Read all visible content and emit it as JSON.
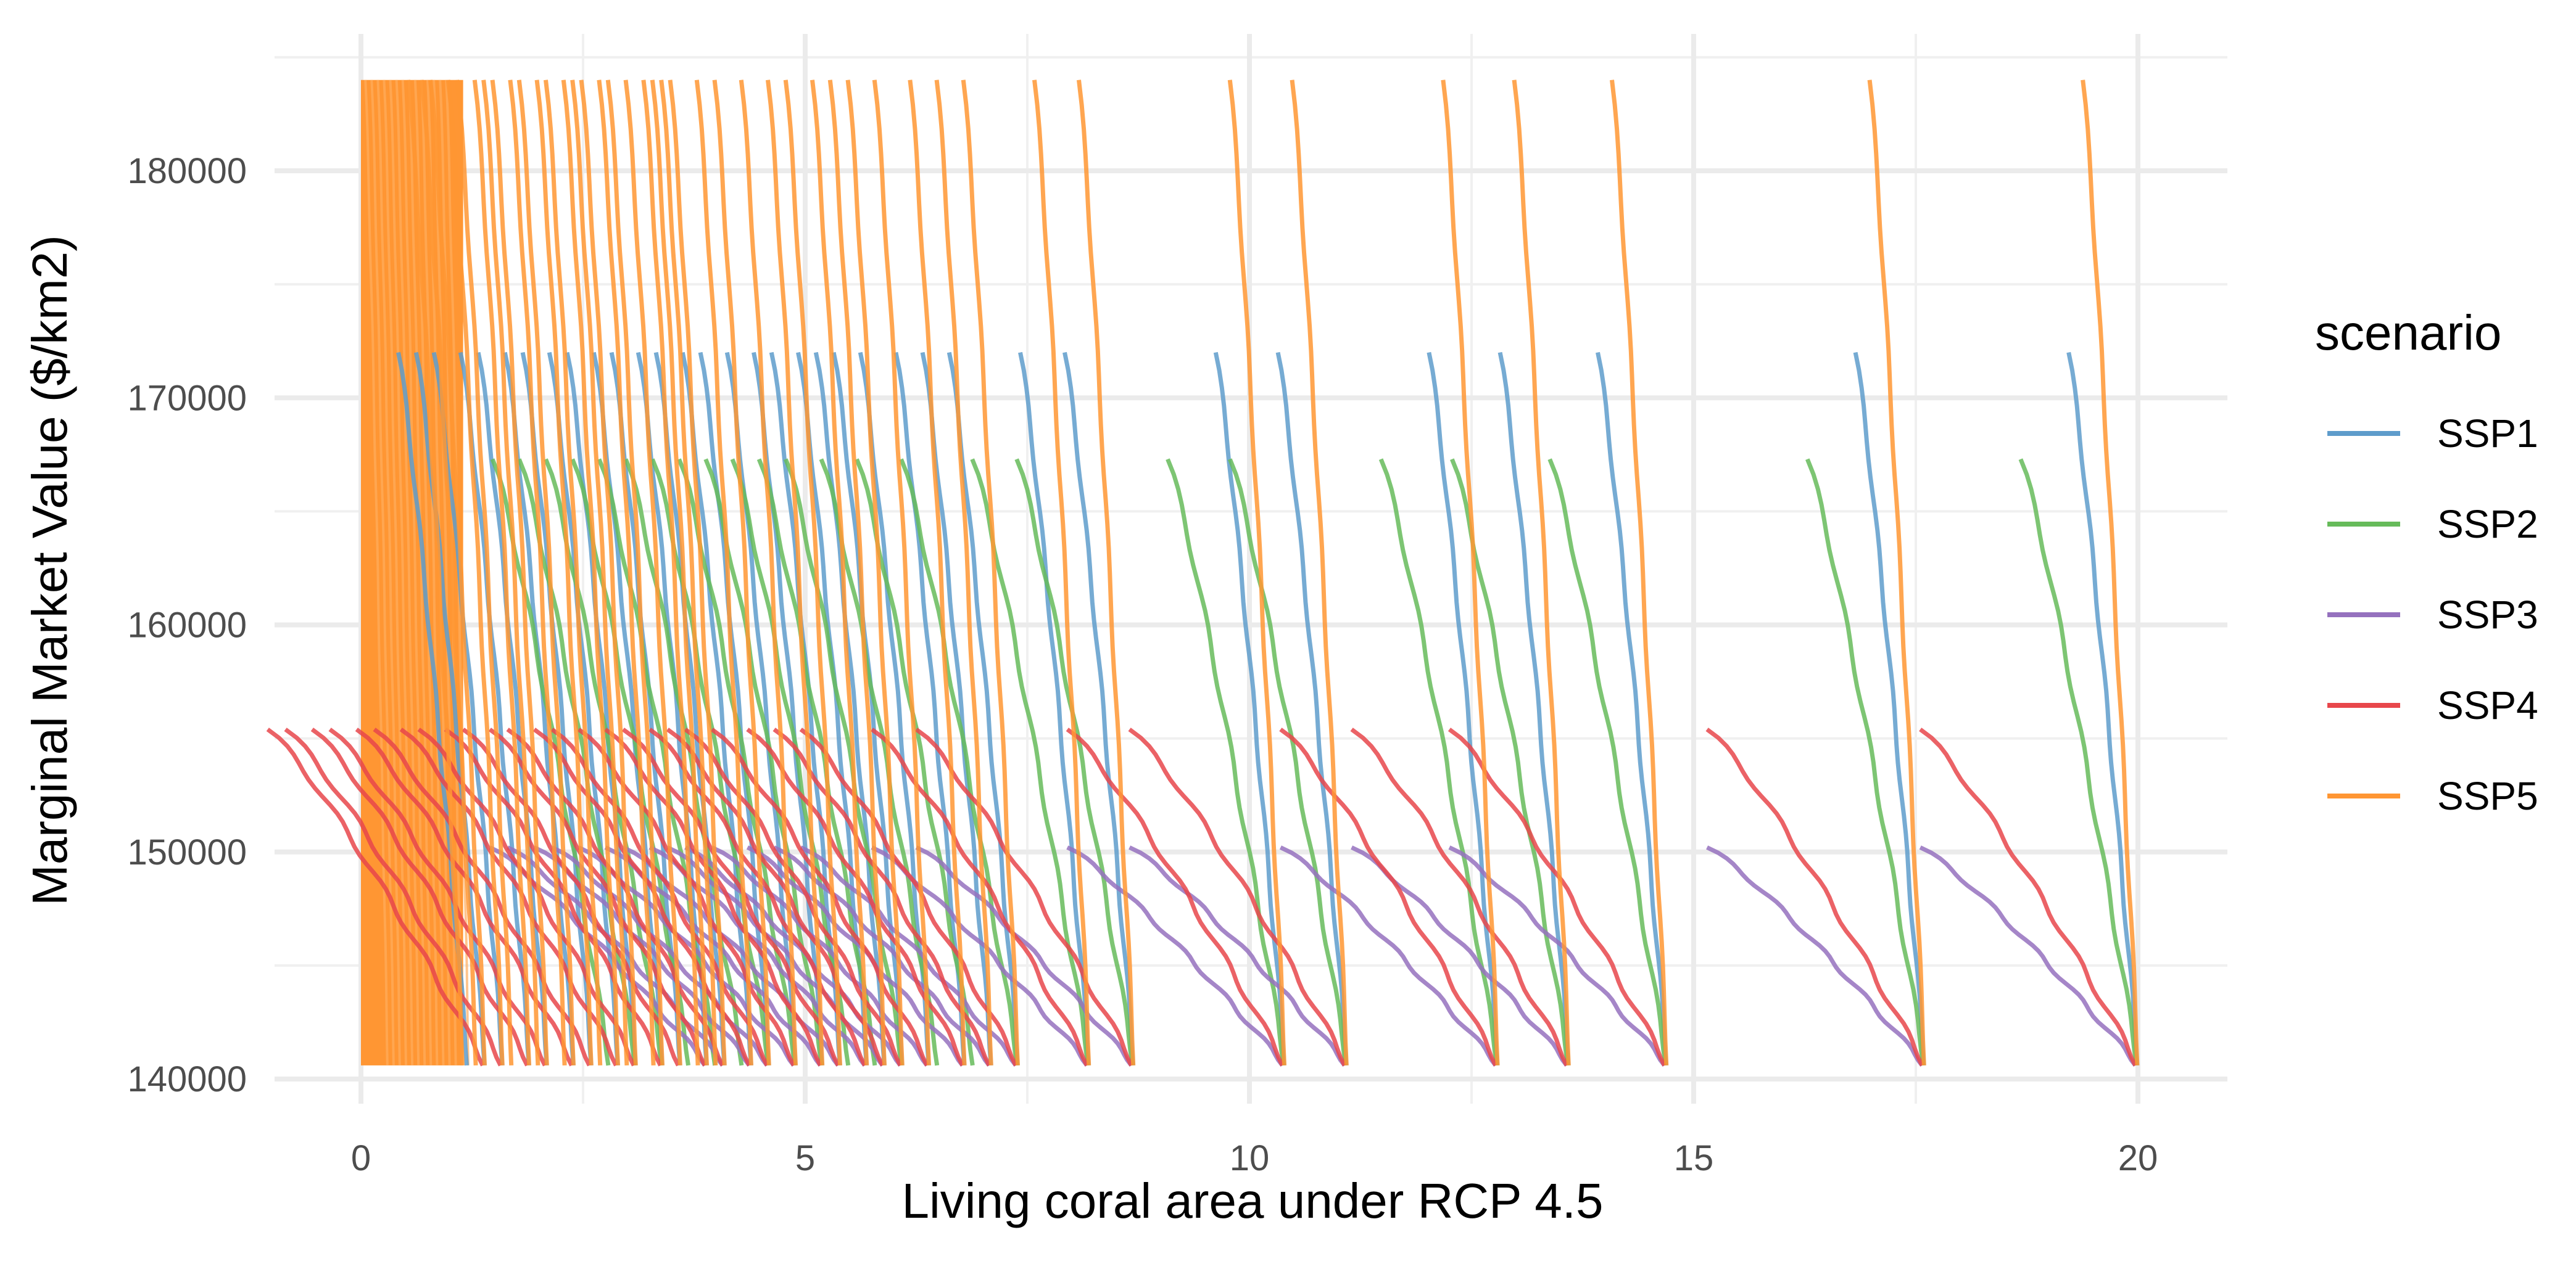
{
  "chart_data": {
    "type": "line",
    "title": "",
    "xlabel": "Living coral area under RCP 4.5",
    "ylabel": "Marginal Market Value ($/km2)",
    "xlim": [
      -1,
      21
    ],
    "ylim": [
      138500,
      186000
    ],
    "x_ticks": [
      0,
      5,
      10,
      15,
      20
    ],
    "x_tick_labels": [
      "0",
      "5",
      "10",
      "15",
      "20"
    ],
    "y_ticks": [
      140000,
      150000,
      160000,
      170000,
      180000
    ],
    "y_tick_labels": [
      "140000",
      "150000",
      "160000",
      "170000",
      "180000"
    ],
    "grid": true,
    "legend": {
      "title": "scenario",
      "placement": "right",
      "entries": [
        {
          "label": "SSP1",
          "color": "#5e9ccb"
        },
        {
          "label": "SSP2",
          "color": "#66bb5a"
        },
        {
          "label": "SSP3",
          "color": "#9571be"
        },
        {
          "label": "SSP4",
          "color": "#e8474b"
        },
        {
          "label": "SSP5",
          "color": "#ff9633"
        }
      ]
    },
    "y_min_common": 140600,
    "series": [
      {
        "name": "SSP1",
        "color": "#5e9ccb",
        "y_max": 172000,
        "x_max": [
          20.0,
          17.6,
          14.7,
          13.6,
          12.8,
          11.1,
          10.4,
          8.7,
          8.2,
          7.4,
          7.1,
          6.8,
          6.4,
          6.1,
          5.9,
          5.7,
          5.4,
          5.2,
          4.9,
          4.6,
          4.4,
          4.1,
          3.9,
          3.6,
          3.4,
          3.1,
          2.9,
          2.6,
          2.4,
          2.1,
          1.9,
          1.6,
          1.4,
          1.2
        ],
        "drop": 0.78
      },
      {
        "name": "SSP2",
        "color": "#66bb5a",
        "y_max": 167300,
        "x_max": [
          20.0,
          17.6,
          14.7,
          13.6,
          12.8,
          11.1,
          10.4,
          8.7,
          8.2,
          7.4,
          6.9,
          6.5,
          6.1,
          5.8,
          5.5,
          5.2,
          4.9,
          4.6,
          4.3,
          4.0,
          3.7,
          3.4,
          3.1,
          2.8
        ],
        "drop": 1.32
      },
      {
        "name": "SSP3",
        "color": "#9571be",
        "y_max": 150200,
        "x_max": [
          20.0,
          17.6,
          14.7,
          13.6,
          12.8,
          11.1,
          10.4,
          8.7,
          8.2,
          7.4,
          7.1,
          6.8,
          6.4,
          6.1,
          5.9,
          5.7,
          5.4,
          5.2,
          4.9,
          4.6,
          4.4,
          4.1,
          3.9
        ],
        "drop": 2.45
      },
      {
        "name": "SSP4",
        "color": "#e8474b",
        "y_max": 155400,
        "x_max": [
          20.0,
          17.6,
          14.7,
          13.6,
          12.8,
          11.1,
          10.4,
          8.7,
          8.2,
          7.4,
          7.1,
          6.8,
          6.4,
          6.1,
          5.9,
          5.7,
          5.4,
          5.2,
          4.9,
          4.6,
          4.4,
          4.1,
          3.9,
          3.6,
          3.4,
          3.1,
          2.9,
          2.6,
          2.4,
          2.1,
          1.9,
          1.6,
          1.4
        ],
        "drop": 2.45
      },
      {
        "name": "SSP5",
        "color": "#ff9633",
        "y_max": 184000,
        "x_max": [
          20.0,
          17.6,
          14.7,
          13.6,
          12.8,
          11.1,
          10.4,
          8.7,
          8.2,
          7.4,
          7.1,
          6.8,
          6.4,
          6.1,
          5.9,
          5.7,
          5.4,
          5.2,
          4.9,
          4.6,
          4.4,
          4.1,
          4.0,
          3.9,
          3.8,
          3.6,
          3.4,
          3.3,
          3.1,
          3.0,
          2.9,
          2.7,
          2.6,
          2.4,
          2.3,
          2.1,
          2.0,
          1.9,
          1.7,
          1.6,
          1.4,
          1.3,
          1.15
        ],
        "drop": 0.62,
        "fill_region": [
          0,
          1.15
        ]
      }
    ]
  }
}
